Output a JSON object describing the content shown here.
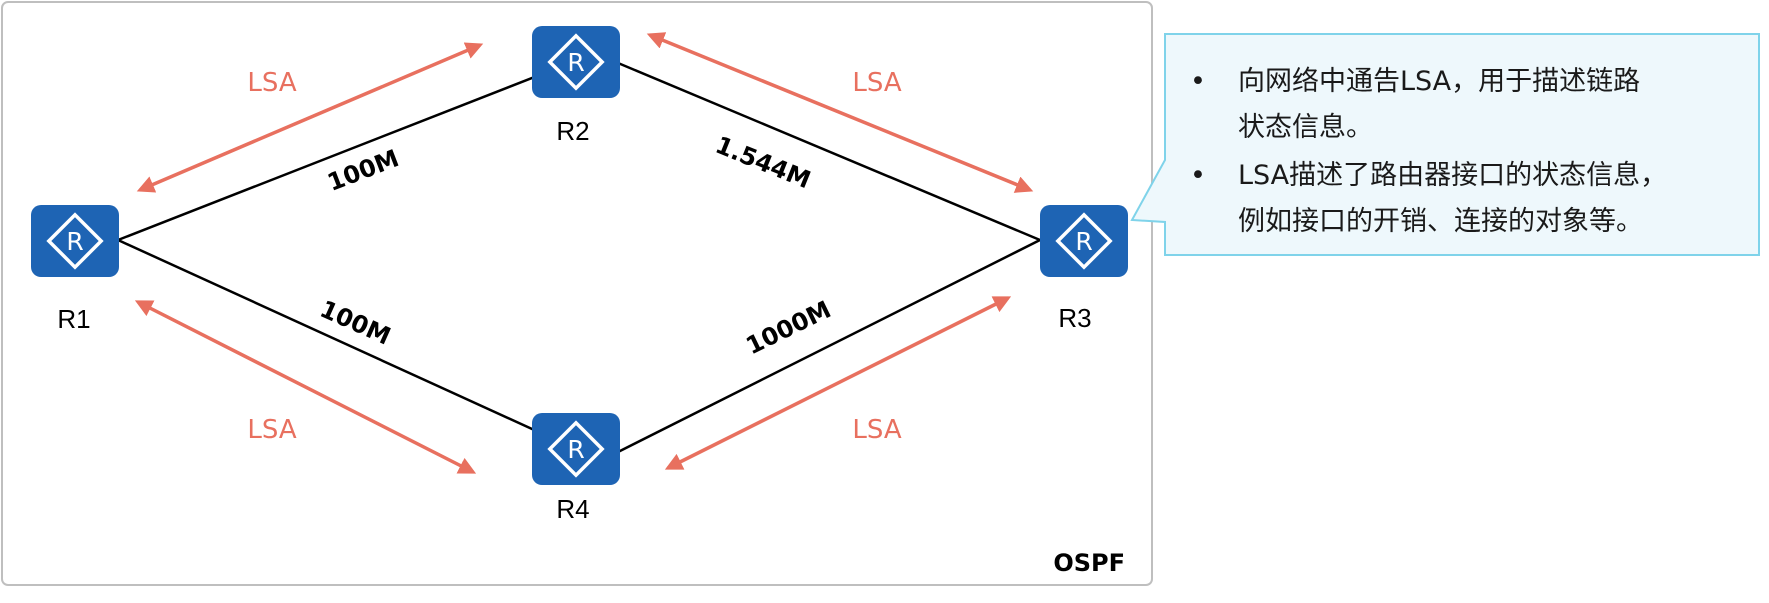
{
  "diagram": {
    "area_label": "OSPF",
    "routers": {
      "r1": "R1",
      "r2": "R2",
      "r3": "R3",
      "r4": "R4"
    },
    "router_icon_letter": "R",
    "links": {
      "r1_r2": "100M",
      "r2_r3": "1.544M",
      "r1_r4": "100M",
      "r4_r3": "1000M"
    },
    "lsa": {
      "top_left": "LSA",
      "top_right": "LSA",
      "bottom_left": "LSA",
      "bottom_right": "LSA"
    },
    "colors": {
      "router_blue": "#1e64b4",
      "lsa_arrow": "#e8705f",
      "callout_fill": "#eef8fc",
      "callout_border": "#7fd3ea",
      "frame_border": "#bfbfbf"
    }
  },
  "callout": {
    "bullets": [
      {
        "lines": [
          "向网络中通告LSA，用于描述链路",
          "状态信息。"
        ]
      },
      {
        "lines": [
          "LSA描述了路由器接口的状态信息，",
          "例如接口的开销、连接的对象等。"
        ]
      }
    ]
  }
}
